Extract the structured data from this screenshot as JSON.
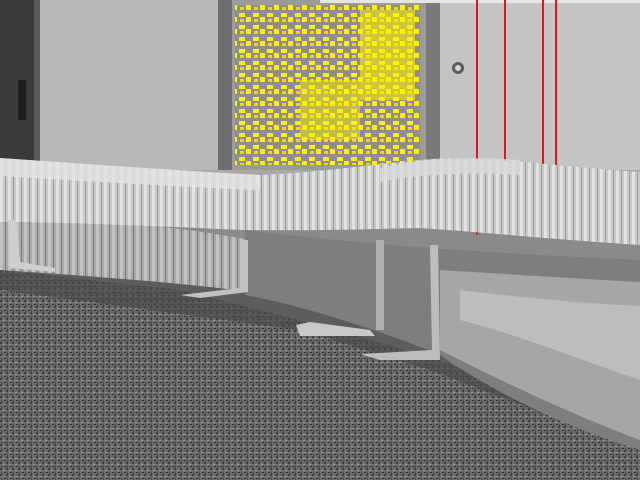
{
  "scene": {
    "description_label": "",
    "colors": {
      "wall": "#a9a9a9",
      "wall_light": "#c4c4c4",
      "door": "#9b9b9b",
      "door_dark": "#6e6e6e",
      "cabinet": "#3a3a3a",
      "yellow_patch": "#fff200",
      "tube_light": "#d8d8d8",
      "tube_mid": "#bdbdbd",
      "tube_dark": "#8c8c8c",
      "shadow": "#5a5a5a",
      "carpet": "#6b6b6b",
      "carpet_dark": "#3f3f3f",
      "red_line": "#e01818"
    }
  }
}
